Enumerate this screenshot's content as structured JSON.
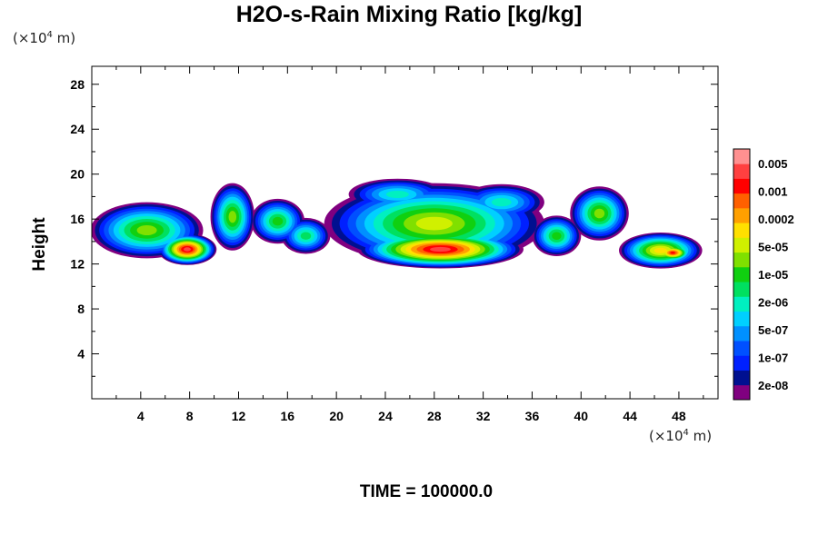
{
  "title": "H2O-s-Rain Mixing Ratio [kg/kg]",
  "footer": "TIME = 100000.0",
  "chart_data": {
    "type": "contour",
    "title": "H2O-s-Rain Mixing Ratio [kg/kg]",
    "xlabel": "",
    "ylabel": "Height",
    "x_unit": {
      "prefix": "(×10",
      "exp": "4",
      "suffix": " m)"
    },
    "y_unit": {
      "prefix": "(×10",
      "exp": "4",
      "suffix": " m)"
    },
    "xlim": [
      0,
      51.2
    ],
    "ylim": [
      0,
      29.6
    ],
    "x_ticks": [
      4,
      8,
      12,
      16,
      20,
      24,
      28,
      32,
      36,
      40,
      44,
      48
    ],
    "y_ticks": [
      4,
      8,
      12,
      16,
      20,
      24,
      28
    ],
    "colorbar": {
      "labels": [
        "0.005",
        "0.001",
        "0.0002",
        "5e-05",
        "1e-05",
        "2e-06",
        "5e-07",
        "1e-07",
        "2e-08"
      ],
      "colors": [
        "#800080",
        "#001090",
        "#0020ff",
        "#0050ff",
        "#0090ff",
        "#00d0ff",
        "#00f0c0",
        "#00e060",
        "#10d010",
        "#80e000",
        "#d0f000",
        "#ffe000",
        "#ffa000",
        "#ff6000",
        "#ff0000",
        "#ff4040",
        "#ff9090"
      ]
    },
    "annotations": [
      "TIME = 100000.0"
    ]
  }
}
